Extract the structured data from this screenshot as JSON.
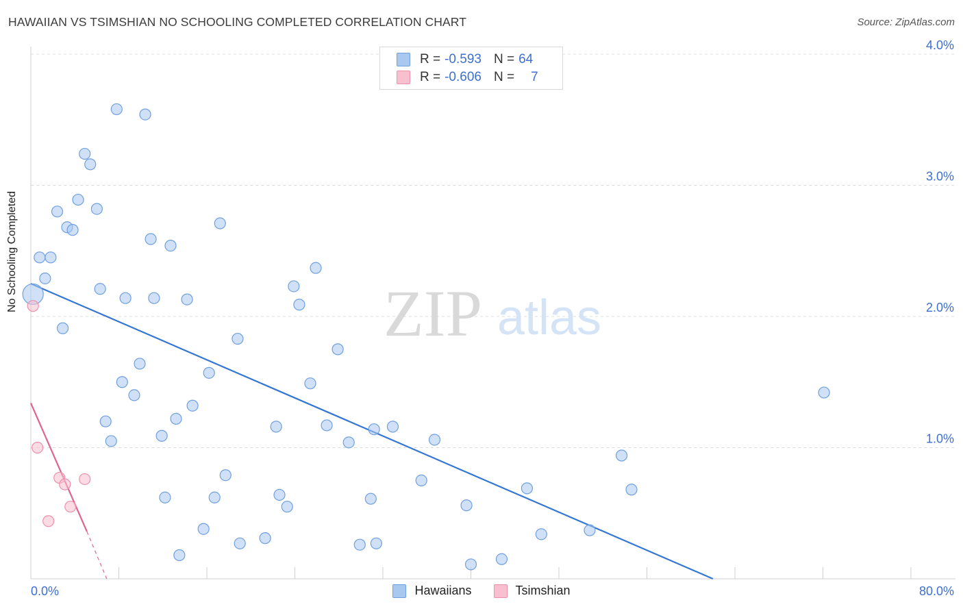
{
  "title": "HAWAIIAN VS TSIMSHIAN NO SCHOOLING COMPLETED CORRELATION CHART",
  "source": "Source: ZipAtlas.com",
  "watermark": {
    "zip": "ZIP",
    "atlas": "atlas"
  },
  "legend": {
    "rows": [
      {
        "r_label": "R =",
        "r_value": "-0.593",
        "n_label": "N =",
        "n_value": "64",
        "color": "#a9c8f0",
        "edge": "#6f9fe0"
      },
      {
        "r_label": "R =",
        "r_value": "-0.606",
        "n_label": "N =",
        "n_value": "7",
        "color": "#f8c0cf",
        "edge": "#ee8fab"
      }
    ]
  },
  "bottom_legend": [
    {
      "label": "Hawaiians",
      "color": "#a9c8f0",
      "edge": "#6f9fe0"
    },
    {
      "label": "Tsimshian",
      "color": "#f8c0cf",
      "edge": "#ee8fab"
    }
  ],
  "chart_data": {
    "type": "scatter",
    "title": "HAWAIIAN VS TSIMSHIAN NO SCHOOLING COMPLETED CORRELATION CHART",
    "xlabel": "",
    "ylabel": "No Schooling Completed",
    "xlim": [
      0,
      80
    ],
    "ylim": [
      0,
      4.0
    ],
    "x_tick_labels": [
      "0.0%",
      "80.0%"
    ],
    "y_ticks": [
      1.0,
      2.0,
      3.0,
      4.0
    ],
    "y_tick_labels": [
      "1.0%",
      "2.0%",
      "3.0%",
      "4.0%"
    ],
    "grid": true,
    "legend_position": "top-center",
    "series": [
      {
        "name": "Hawaiians",
        "color": "#a9c8f0",
        "edge": "#6f9fe0",
        "line_color": "#3476d3",
        "trend": {
          "x": [
            0,
            62
          ],
          "y": [
            2.25,
            0.0
          ]
        },
        "points": [
          [
            0.2,
            2.17
          ],
          [
            0.8,
            2.45
          ],
          [
            1.3,
            2.29
          ],
          [
            1.8,
            2.45
          ],
          [
            2.4,
            2.8
          ],
          [
            2.9,
            1.91
          ],
          [
            3.3,
            2.68
          ],
          [
            3.8,
            2.66
          ],
          [
            4.3,
            2.89
          ],
          [
            4.9,
            3.24
          ],
          [
            5.4,
            3.16
          ],
          [
            6.0,
            2.82
          ],
          [
            6.3,
            2.21
          ],
          [
            6.8,
            1.2
          ],
          [
            7.3,
            1.05
          ],
          [
            7.8,
            3.58
          ],
          [
            8.3,
            1.5
          ],
          [
            8.6,
            2.14
          ],
          [
            9.4,
            1.4
          ],
          [
            9.9,
            1.64
          ],
          [
            10.4,
            3.54
          ],
          [
            10.9,
            2.59
          ],
          [
            11.2,
            2.14
          ],
          [
            11.9,
            1.09
          ],
          [
            12.2,
            0.62
          ],
          [
            12.7,
            2.54
          ],
          [
            13.2,
            1.22
          ],
          [
            13.5,
            0.18
          ],
          [
            14.2,
            2.13
          ],
          [
            14.7,
            1.32
          ],
          [
            15.7,
            0.38
          ],
          [
            16.2,
            1.57
          ],
          [
            16.7,
            0.62
          ],
          [
            17.2,
            2.71
          ],
          [
            17.7,
            0.79
          ],
          [
            18.8,
            1.83
          ],
          [
            19.0,
            0.27
          ],
          [
            21.3,
            0.31
          ],
          [
            22.3,
            1.16
          ],
          [
            22.6,
            0.64
          ],
          [
            23.3,
            0.55
          ],
          [
            23.9,
            2.23
          ],
          [
            24.4,
            2.09
          ],
          [
            25.4,
            1.49
          ],
          [
            25.9,
            2.37
          ],
          [
            26.9,
            1.17
          ],
          [
            27.9,
            1.75
          ],
          [
            28.9,
            1.04
          ],
          [
            29.9,
            0.26
          ],
          [
            30.9,
            0.61
          ],
          [
            31.2,
            1.14
          ],
          [
            31.4,
            0.27
          ],
          [
            32.9,
            1.16
          ],
          [
            35.5,
            0.75
          ],
          [
            36.7,
            1.06
          ],
          [
            39.6,
            0.56
          ],
          [
            40.0,
            0.11
          ],
          [
            42.8,
            0.15
          ],
          [
            45.1,
            0.69
          ],
          [
            46.4,
            0.34
          ],
          [
            50.8,
            0.37
          ],
          [
            53.7,
            0.94
          ],
          [
            54.6,
            0.68
          ],
          [
            72.1,
            1.42
          ]
        ]
      },
      {
        "name": "Tsimshian",
        "color": "#f8c0cf",
        "edge": "#ee8fab",
        "line_color": "#e0648e",
        "trend": {
          "x": [
            0,
            5.1
          ],
          "y": [
            1.34,
            0.36
          ]
        },
        "trend_dashed": {
          "x": [
            5.1,
            6.9
          ],
          "y": [
            0.36,
            0.0
          ]
        },
        "points": [
          [
            0.2,
            2.08
          ],
          [
            0.6,
            1.0
          ],
          [
            1.6,
            0.44
          ],
          [
            2.6,
            0.77
          ],
          [
            3.1,
            0.72
          ],
          [
            3.6,
            0.55
          ],
          [
            4.9,
            0.76
          ]
        ]
      }
    ]
  }
}
